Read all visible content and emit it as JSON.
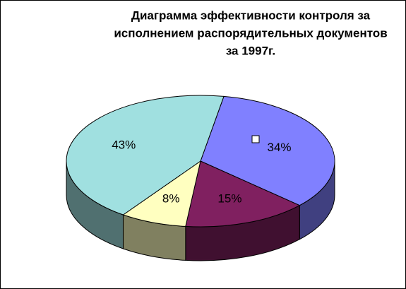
{
  "chart_data": {
    "type": "pie",
    "title": [
      "Диаграмма эффективности контроля за",
      "исполнением распорядительных документов",
      "за 1997г."
    ],
    "values": [
      34,
      15,
      8,
      43
    ],
    "value_labels": [
      "34%",
      "15%",
      "8%",
      "43%"
    ],
    "colors": [
      "#8080ff",
      "#802060",
      "#ffffc0",
      "#a0e0e0"
    ],
    "three_d": true
  }
}
